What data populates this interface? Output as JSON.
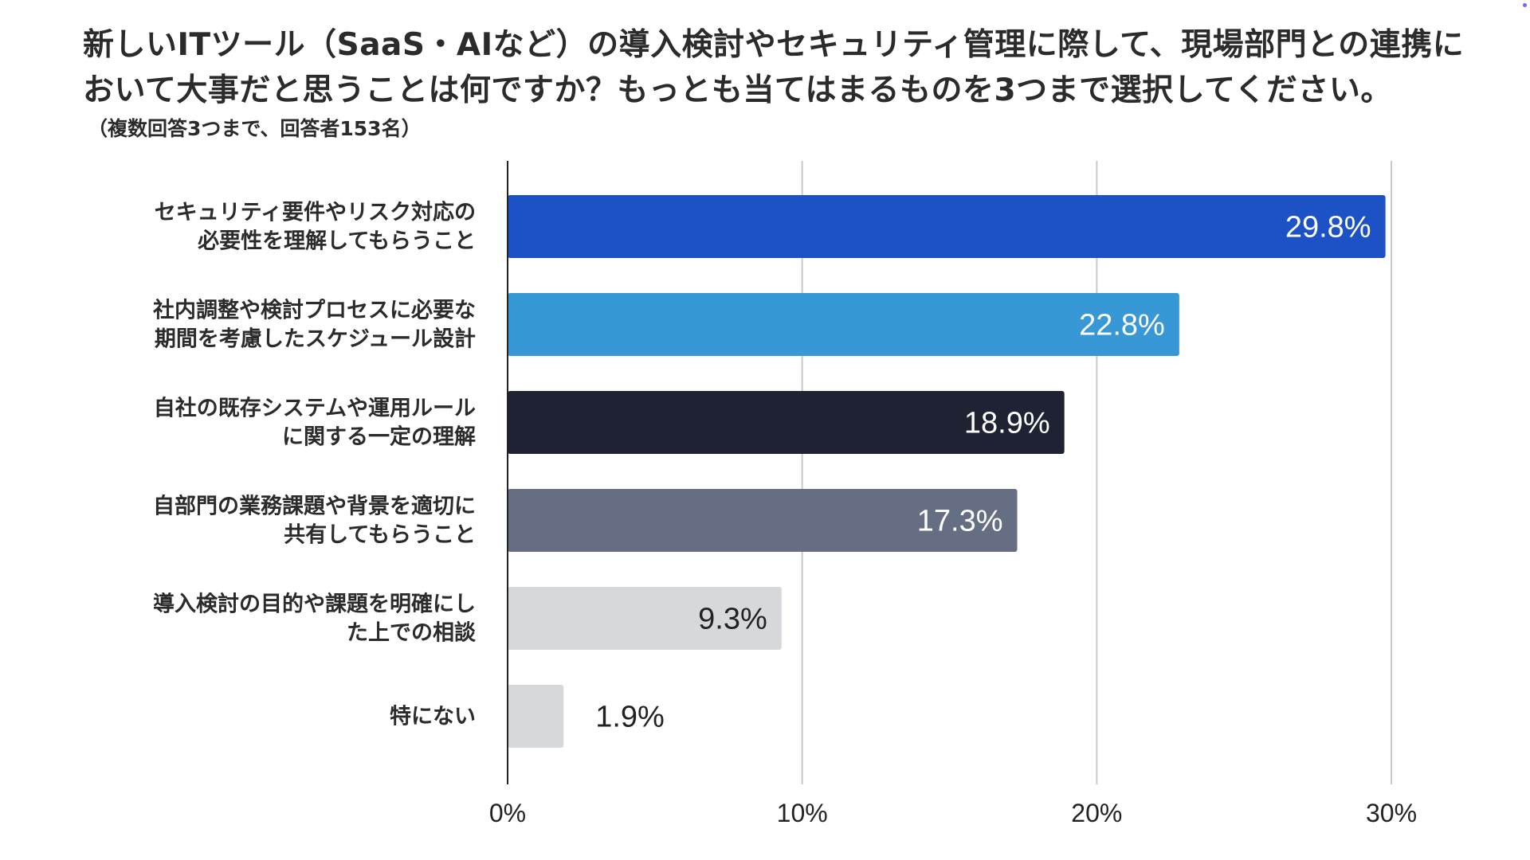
{
  "chart_data": {
    "type": "bar",
    "orientation": "horizontal",
    "title": "新しいITツール（SaaS・AIなど）の導入検討やセキュリティ管理に際して、現場部門との連携において大事だと思うことは何ですか？もっとも当てはまるものを3つまで選択してください。",
    "subtitle": "（複数回答3つまで、回答者153名）",
    "categories": [
      [
        "セキュリティ要件やリスク対応の",
        "必要性を理解してもらうこと"
      ],
      [
        "社内調整や検討プロセスに必要な",
        "期間を考慮したスケジュール設計"
      ],
      [
        "自社の既存システムや運用ルール",
        "に関する一定の理解"
      ],
      [
        "自部門の業務課題や背景を適切に",
        "共有してもらうこと"
      ],
      [
        "導入検討の目的や課題を明確にし",
        "た上での相談"
      ],
      [
        "特にない"
      ]
    ],
    "values": [
      29.8,
      22.8,
      18.9,
      17.3,
      9.3,
      1.9
    ],
    "value_labels": [
      "29.8%",
      "22.8%",
      "18.9%",
      "17.3%",
      "9.3%",
      "1.9%"
    ],
    "bar_colors": [
      "#1c52c5",
      "#3898d6",
      "#1e2232",
      "#656e82",
      "#d7d8dc",
      "#d7d8dc"
    ],
    "label_colors": [
      "#ffffff",
      "#ffffff",
      "#ffffff",
      "#ffffff",
      "#222222",
      "#222222"
    ],
    "xlim": [
      0,
      30
    ],
    "xticks": [
      0,
      10,
      20,
      30
    ],
    "xtick_labels": [
      "0%",
      "10%",
      "20%",
      "30%"
    ],
    "grid": true,
    "xlabel": "",
    "ylabel": ""
  }
}
